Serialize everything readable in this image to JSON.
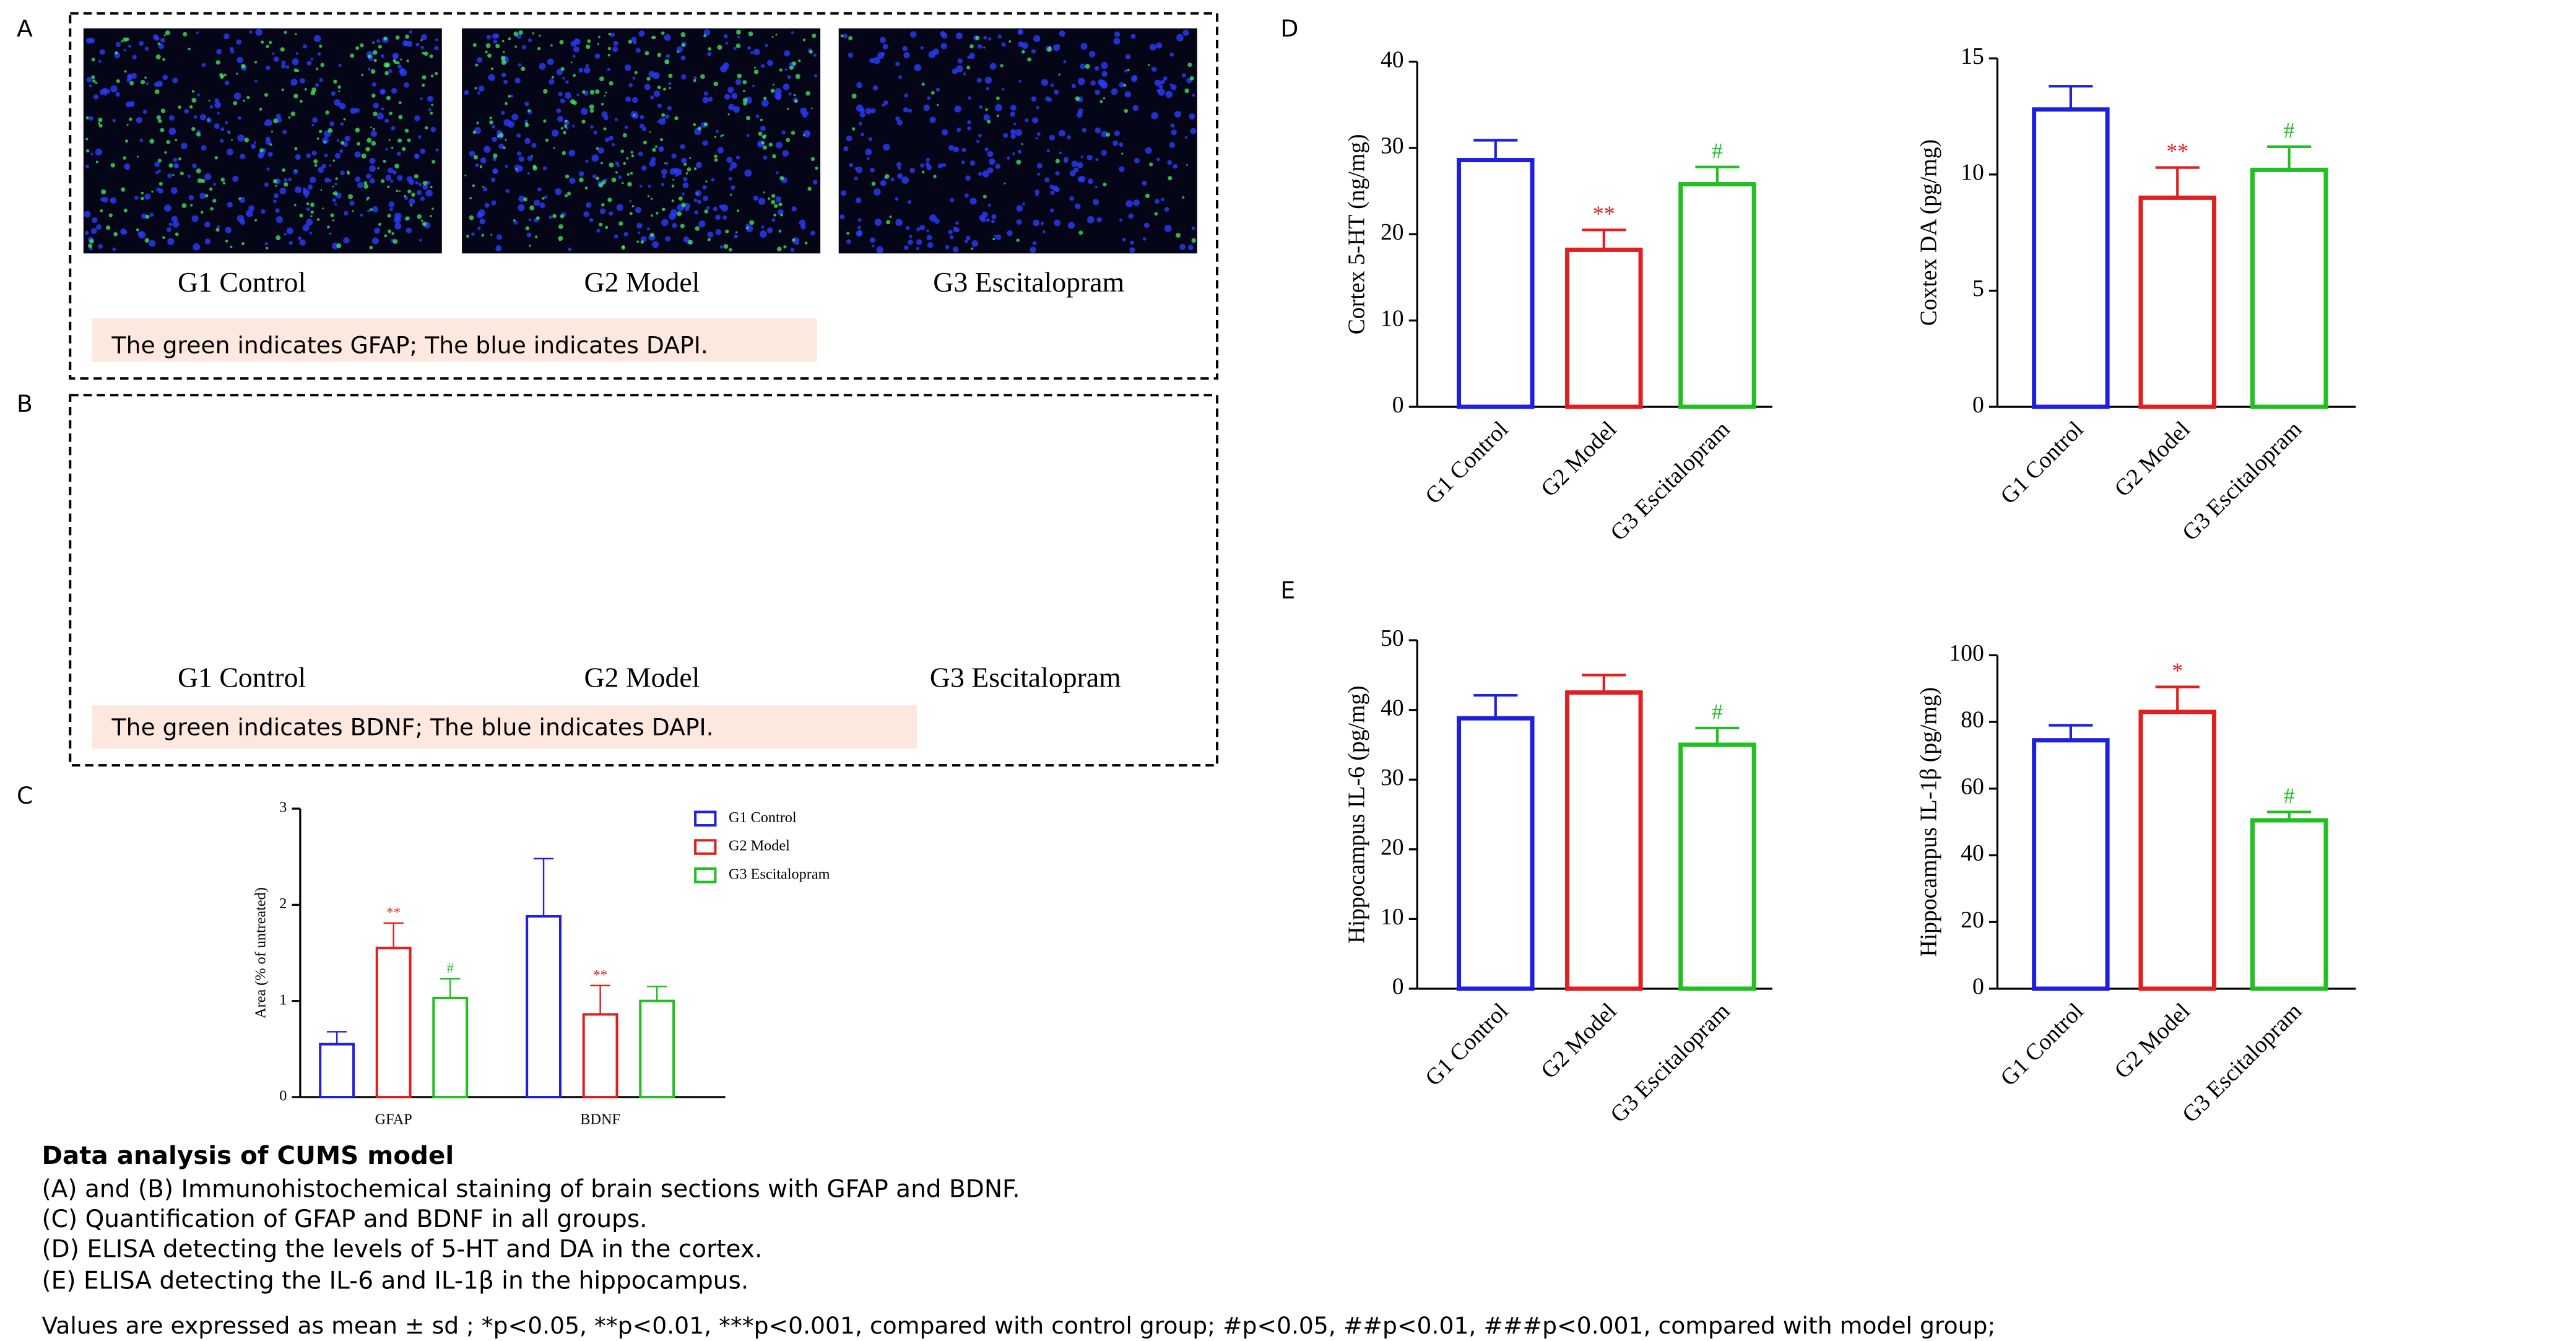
{
  "figure": {
    "panel_labels": [
      "A",
      "B",
      "C",
      "D",
      "E"
    ],
    "panel_a": {
      "labels": [
        "G1 Control",
        "G2 Model",
        "G3 Escitalopram"
      ],
      "note": "The green indicates GFAP; The blue indicates DAPI."
    },
    "panel_b": {
      "labels": [
        "G1 Control",
        "G2 Model",
        "G3 Escitalopram"
      ],
      "note": "The green indicates BDNF; The blue indicates DAPI."
    }
  },
  "chart_data": [
    {
      "type": "bar",
      "ylabel": "Area (% of untreated)",
      "categories": [
        "GFAP",
        "BDNF"
      ],
      "series": [
        {
          "name": "G1 Control",
          "color": "#1f1fe0",
          "values": [
            0.55,
            1.88
          ],
          "errors": [
            0.13,
            0.6
          ],
          "significance": [
            null,
            null
          ]
        },
        {
          "name": "G2 Model",
          "color": "#e02020",
          "values": [
            1.55,
            0.86
          ],
          "errors": [
            0.26,
            0.3
          ],
          "significance": [
            "**",
            "**"
          ]
        },
        {
          "name": "G3 Escitalopram",
          "color": "#20c020",
          "values": [
            1.03,
            1.0
          ],
          "errors": [
            0.2,
            0.15
          ],
          "significance": [
            "#",
            null
          ]
        }
      ],
      "ylim": [
        0,
        3
      ],
      "yticks": [
        0,
        1,
        2,
        3
      ]
    },
    {
      "type": "bar",
      "ylabel": "Cortex 5-HT (ng/mg)",
      "categories": [
        "G1 Control",
        "G2 Model",
        "G3 Escitalopram"
      ],
      "values": [
        28.6,
        18.2,
        25.8
      ],
      "errors": [
        2.3,
        2.3,
        2.0
      ],
      "significance": [
        null,
        "**",
        "#"
      ],
      "colors": [
        "#1f1fe0",
        "#e02020",
        "#20c020"
      ],
      "ylim": [
        0,
        40
      ],
      "yticks": [
        0,
        10,
        20,
        30,
        40
      ]
    },
    {
      "type": "bar",
      "ylabel": "Coxtex DA (pg/mg)",
      "categories": [
        "G1 Control",
        "G2 Model",
        "G3 Escitalopram"
      ],
      "values": [
        12.8,
        9.0,
        10.2
      ],
      "errors": [
        1.0,
        1.3,
        1.0
      ],
      "significance": [
        null,
        "**",
        "#"
      ],
      "colors": [
        "#1f1fe0",
        "#e02020",
        "#20c020"
      ],
      "ylim": [
        0,
        15
      ],
      "yticks": [
        0,
        5,
        10,
        15
      ]
    },
    {
      "type": "bar",
      "ylabel": "Hippocampus IL-6 (pg/mg)",
      "categories": [
        "G1 Control",
        "G2 Model",
        "G3 Escitalopram"
      ],
      "values": [
        38.8,
        42.5,
        35.0
      ],
      "errors": [
        3.3,
        2.5,
        2.4
      ],
      "significance": [
        null,
        null,
        "#"
      ],
      "colors": [
        "#1f1fe0",
        "#e02020",
        "#20c020"
      ],
      "ylim": [
        0,
        50
      ],
      "yticks": [
        0,
        10,
        20,
        30,
        40,
        50
      ]
    },
    {
      "type": "bar",
      "ylabel": "Hippocampus IL-1β (pg/mg)",
      "categories": [
        "G1 Control",
        "G2 Model",
        "G3 Escitalopram"
      ],
      "values": [
        74.5,
        83.0,
        50.5
      ],
      "errors": [
        4.5,
        7.5,
        2.5
      ],
      "significance": [
        null,
        "*",
        "#"
      ],
      "colors": [
        "#1f1fe0",
        "#e02020",
        "#20c020"
      ],
      "ylim": [
        0,
        100
      ],
      "yticks": [
        0,
        20,
        40,
        60,
        80,
        100
      ]
    }
  ],
  "caption": {
    "title": "Data analysis  of CUMS model",
    "lines": [
      "(A) and (B) Immunohistochemical staining of brain sections with GFAP and BDNF.",
      "(C) Quantification of GFAP and BDNF in all groups.",
      "(D) ELISA detecting the levels of 5-HT and DA in the cortex.",
      "(E)   ELISA detecting the IL-6 and IL-1β in the hippocampus."
    ],
    "footnote": "Values are expressed as mean ± sd ; *p<0.05, **p<0.01, ***p<0.001, compared with control group; #p<0.05, ##p<0.01, ###p<0.001, compared with model group;"
  }
}
